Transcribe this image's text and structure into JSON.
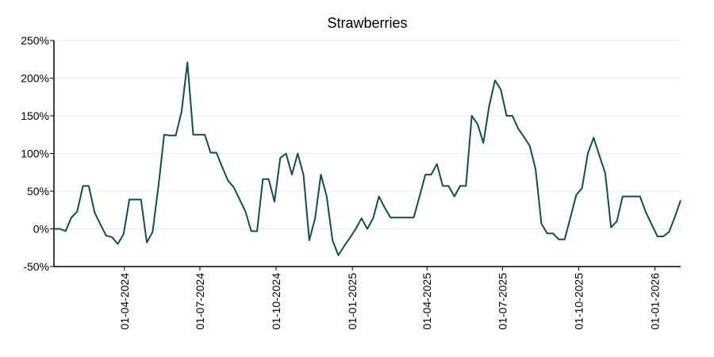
{
  "chart_data": {
    "type": "line",
    "title": "Strawberries",
    "x": [
      "2024-01-07",
      "2024-01-14",
      "2024-01-21",
      "2024-01-28",
      "2024-02-04",
      "2024-02-11",
      "2024-02-18",
      "2024-02-25",
      "2024-03-03",
      "2024-03-10",
      "2024-03-17",
      "2024-03-24",
      "2024-03-31",
      "2024-04-07",
      "2024-04-14",
      "2024-04-21",
      "2024-04-28",
      "2024-05-05",
      "2024-05-12",
      "2024-05-19",
      "2024-05-26",
      "2024-06-02",
      "2024-06-09",
      "2024-06-16",
      "2024-06-23",
      "2024-06-30",
      "2024-07-07",
      "2024-07-14",
      "2024-07-21",
      "2024-07-28",
      "2024-08-04",
      "2024-08-11",
      "2024-08-18",
      "2024-08-25",
      "2024-09-01",
      "2024-09-08",
      "2024-09-15",
      "2024-09-22",
      "2024-09-29",
      "2024-10-06",
      "2024-10-13",
      "2024-10-20",
      "2024-10-27",
      "2024-11-03",
      "2024-11-10",
      "2024-11-17",
      "2024-11-24",
      "2024-12-01",
      "2024-12-08",
      "2024-12-15",
      "2024-12-22",
      "2024-12-29",
      "2025-01-05",
      "2025-01-12",
      "2025-01-19",
      "2025-01-26",
      "2025-02-02",
      "2025-02-09",
      "2025-02-16",
      "2025-02-23",
      "2025-03-02",
      "2025-03-09",
      "2025-03-16",
      "2025-03-23",
      "2025-03-30",
      "2025-04-06",
      "2025-04-13",
      "2025-04-20",
      "2025-04-27",
      "2025-05-04",
      "2025-05-11",
      "2025-05-18",
      "2025-05-25",
      "2025-06-01",
      "2025-06-08",
      "2025-06-15",
      "2025-06-22",
      "2025-06-29",
      "2025-07-06",
      "2025-07-13",
      "2025-07-20",
      "2025-07-27",
      "2025-08-03",
      "2025-08-10",
      "2025-08-17",
      "2025-08-24",
      "2025-08-31",
      "2025-09-07",
      "2025-09-14",
      "2025-09-21",
      "2025-09-28",
      "2025-10-05",
      "2025-10-12",
      "2025-10-19",
      "2025-10-26",
      "2025-11-02",
      "2025-11-09",
      "2025-11-16",
      "2025-11-23",
      "2025-11-30",
      "2025-12-07",
      "2025-12-14",
      "2025-12-21",
      "2025-12-28",
      "2026-01-04",
      "2026-01-11",
      "2026-01-18",
      "2026-01-25",
      "2026-02-01"
    ],
    "series": [
      {
        "name": "Strawberries",
        "color": "#124e4e",
        "values": [
          0,
          0,
          -3,
          15,
          23,
          57,
          57,
          22,
          6,
          -9,
          -11,
          -20,
          -7,
          39,
          39,
          39,
          -18,
          -4,
          56,
          125,
          124,
          124,
          156,
          221,
          125,
          125,
          125,
          101,
          101,
          82,
          64,
          55,
          39,
          23,
          -3,
          -3,
          66,
          66,
          36,
          94,
          100,
          72,
          100,
          72,
          -15,
          14,
          72,
          43,
          -15,
          -35,
          -23,
          -12,
          0,
          14,
          0,
          14,
          43,
          28,
          15,
          15,
          15,
          15,
          15,
          43,
          72,
          72,
          86,
          57,
          57,
          43,
          57,
          57,
          150,
          139,
          114,
          163,
          197,
          185,
          150,
          150,
          133,
          122,
          110,
          79,
          7,
          -6,
          -6,
          -14,
          -14,
          15,
          45,
          54,
          100,
          121,
          97,
          74,
          2,
          10,
          43,
          43,
          43,
          43,
          22,
          6,
          -10,
          -10,
          -4,
          16,
          38
        ]
      }
    ],
    "xlim": [
      "2024-01-07",
      "2026-02-01"
    ],
    "xticks": [
      {
        "value": "2024-04-01",
        "label": "01-04-2024"
      },
      {
        "value": "2024-07-01",
        "label": "01-07-2024"
      },
      {
        "value": "2024-10-01",
        "label": "01-10-2024"
      },
      {
        "value": "2025-01-01",
        "label": "01-01-2025"
      },
      {
        "value": "2025-04-01",
        "label": "01-04-2025"
      },
      {
        "value": "2025-07-01",
        "label": "01-07-2025"
      },
      {
        "value": "2025-10-01",
        "label": "01-10-2025"
      },
      {
        "value": "2026-01-01",
        "label": "01-01-2026"
      }
    ],
    "ylim": [
      -50,
      250
    ],
    "yticks": [
      {
        "value": -50,
        "label": "-50%"
      },
      {
        "value": 0,
        "label": "0%"
      },
      {
        "value": 50,
        "label": "50%"
      },
      {
        "value": 100,
        "label": "100%"
      },
      {
        "value": 150,
        "label": "150%"
      },
      {
        "value": 200,
        "label": "200%"
      },
      {
        "value": 250,
        "label": "250%"
      }
    ],
    "grid": true
  }
}
